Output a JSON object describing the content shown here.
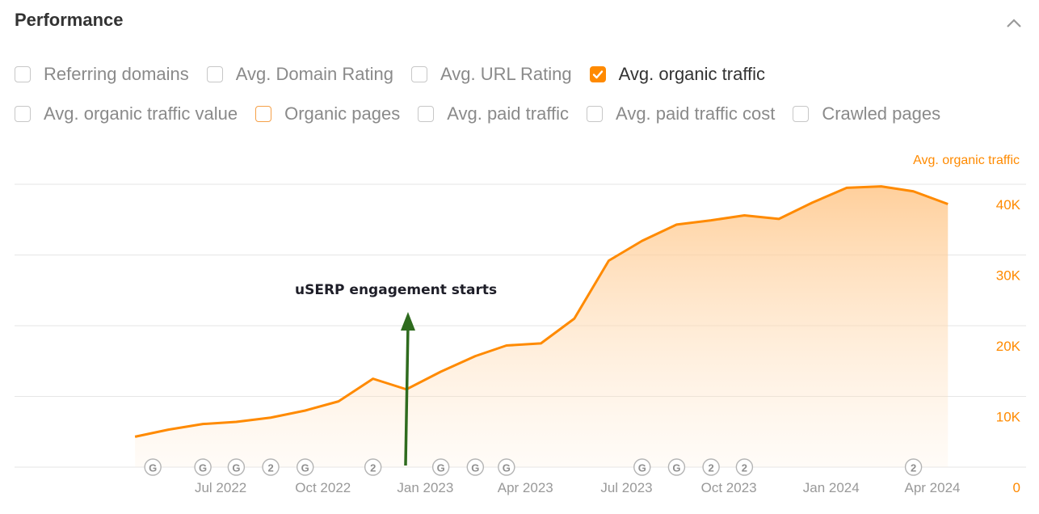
{
  "header": {
    "title": "Performance"
  },
  "options_row1": [
    {
      "label": "Referring domains",
      "state": "unchecked"
    },
    {
      "label": "Avg. Domain Rating",
      "state": "unchecked"
    },
    {
      "label": "Avg. URL Rating",
      "state": "unchecked"
    },
    {
      "label": "Avg. organic traffic",
      "state": "checked"
    }
  ],
  "options_row2": [
    {
      "label": "Avg. organic traffic value",
      "state": "unchecked"
    },
    {
      "label": "Organic pages",
      "state": "highlighted"
    },
    {
      "label": "Avg. paid traffic",
      "state": "unchecked"
    },
    {
      "label": "Avg. paid traffic cost",
      "state": "unchecked"
    },
    {
      "label": "Crawled pages",
      "state": "unchecked"
    }
  ],
  "colors": {
    "accent": "#ff8a00",
    "annotation_arrow": "#2e6b1e"
  },
  "chart_data": {
    "type": "area",
    "series": [
      {
        "name": "Avg. organic traffic",
        "x": [
          "2022-04-15",
          "2022-05-15",
          "2022-06-15",
          "2022-07-15",
          "2022-08-15",
          "2022-09-15",
          "2022-10-15",
          "2022-11-15",
          "2022-12-15",
          "2023-01-15",
          "2023-02-15",
          "2023-03-15",
          "2023-04-15",
          "2023-05-15",
          "2023-06-15",
          "2023-07-15",
          "2023-08-15",
          "2023-09-15",
          "2023-10-15",
          "2023-11-15",
          "2023-12-15",
          "2024-01-15",
          "2024-02-15",
          "2024-03-15",
          "2024-04-15"
        ],
        "values": [
          4300,
          5300,
          6100,
          6400,
          7000,
          8000,
          9300,
          12500,
          11000,
          13500,
          15700,
          17200,
          17500,
          21000,
          29200,
          32000,
          34300,
          34900,
          35600,
          35100,
          37400,
          39500,
          39700,
          39000,
          37200
        ]
      }
    ],
    "y_axis": {
      "title": "Avg. organic traffic",
      "side": "right",
      "range": [
        0,
        40000
      ],
      "ticks": [
        0,
        10000,
        20000,
        30000,
        40000
      ],
      "tick_labels": [
        "0",
        "10K",
        "20K",
        "30K",
        "40K"
      ]
    },
    "x_axis": {
      "tick_labels": [
        "Jul 2022",
        "Oct 2022",
        "Jan 2023",
        "Apr 2023",
        "Jul 2023",
        "Oct 2023",
        "Jan 2024",
        "Apr 2024"
      ],
      "tick_dates": [
        "2022-07-01",
        "2022-10-01",
        "2023-01-01",
        "2023-04-01",
        "2023-07-01",
        "2023-10-01",
        "2024-01-01",
        "2024-04-01"
      ]
    },
    "grid": true,
    "markers": [
      {
        "date": "2022-05-01",
        "label": "G"
      },
      {
        "date": "2022-06-15",
        "label": "G"
      },
      {
        "date": "2022-07-15",
        "label": "G"
      },
      {
        "date": "2022-08-15",
        "label": "2"
      },
      {
        "date": "2022-09-15",
        "label": "G"
      },
      {
        "date": "2022-11-15",
        "label": "2"
      },
      {
        "date": "2023-01-15",
        "label": "G"
      },
      {
        "date": "2023-02-15",
        "label": "G"
      },
      {
        "date": "2023-03-15",
        "label": "G"
      },
      {
        "date": "2023-07-15",
        "label": "G"
      },
      {
        "date": "2023-08-15",
        "label": "G"
      },
      {
        "date": "2023-09-15",
        "label": "2"
      },
      {
        "date": "2023-10-15",
        "label": "2"
      },
      {
        "date": "2024-03-15",
        "label": "2"
      }
    ],
    "annotation": {
      "text": "uSERP engagement starts",
      "date": "2022-12-15"
    }
  }
}
